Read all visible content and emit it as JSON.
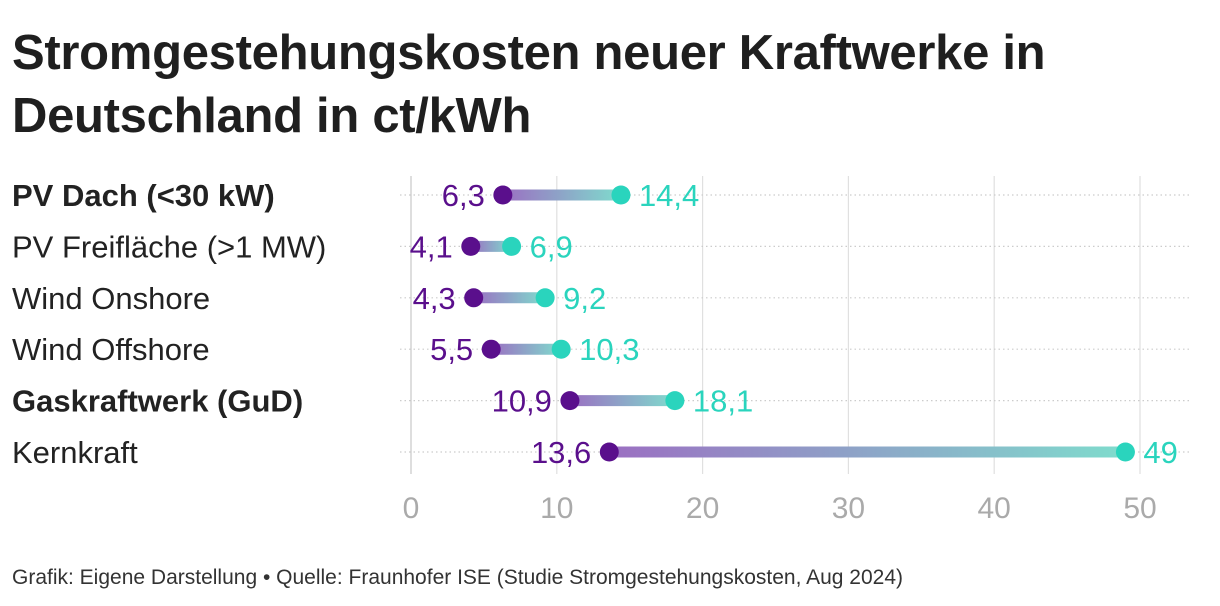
{
  "title": "Stromgestehungskosten neuer Kraftwerke in Deutschland in ct/kWh",
  "footer": "Grafik: Eigene Darstellung • Quelle: Fraunhofer ISE (Studie Stromgestehungskosten, Aug 2024)",
  "colors": {
    "low": "#5a0f8c",
    "high": "#2ad4bd",
    "grid": "#e0e0e0",
    "tick": "#aaaaaa"
  },
  "chart_data": {
    "type": "dumbbell",
    "title": "Stromgestehungskosten neuer Kraftwerke in Deutschland in ct/kWh",
    "xlim": [
      0,
      50
    ],
    "xticks": [
      0,
      10,
      20,
      30,
      40,
      50
    ],
    "grid": true,
    "categories": [
      {
        "label": "PV Dach (<30 kW)",
        "bold": true,
        "low": 6.3,
        "high": 14.4,
        "low_label": "6,3",
        "high_label": "14,4"
      },
      {
        "label": "PV Freifläche (>1 MW)",
        "bold": false,
        "low": 4.1,
        "high": 6.9,
        "low_label": "4,1",
        "high_label": "6,9"
      },
      {
        "label": "Wind Onshore",
        "bold": false,
        "low": 4.3,
        "high": 9.2,
        "low_label": "4,3",
        "high_label": "9,2"
      },
      {
        "label": "Wind Offshore",
        "bold": false,
        "low": 5.5,
        "high": 10.3,
        "low_label": "5,5",
        "high_label": "10,3"
      },
      {
        "label": "Gaskraftwerk (GuD)",
        "bold": true,
        "low": 10.9,
        "high": 18.1,
        "low_label": "10,9",
        "high_label": "18,1"
      },
      {
        "label": "Kernkraft",
        "bold": false,
        "low": 13.6,
        "high": 49,
        "low_label": "13,6",
        "high_label": "49"
      }
    ]
  }
}
